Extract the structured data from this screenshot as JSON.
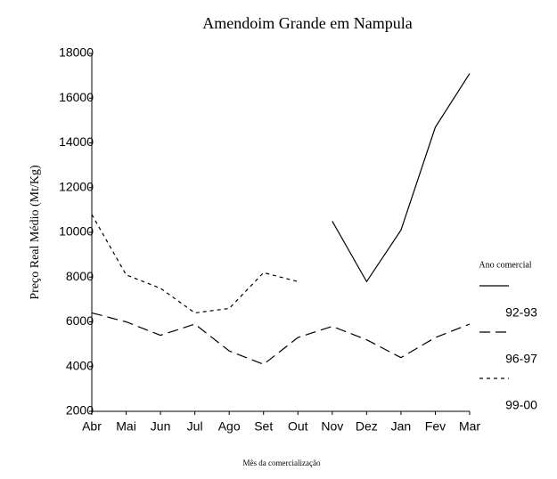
{
  "chart_data": {
    "type": "line",
    "title": "Amendoim Grande em Nampula",
    "x_label": "Mês da comercialização",
    "y_label": "Preço Real Médio (Mt/Kg)",
    "legend_title": "Ano comercial",
    "legend": "right",
    "categories": [
      "Abr",
      "Mai",
      "Jun",
      "Jul",
      "Ago",
      "Set",
      "Out",
      "Nov",
      "Dez",
      "Jan",
      "Fev",
      "Mar"
    ],
    "series": [
      {
        "name": "92-93",
        "color": "#000000",
        "dash": "solid",
        "values": [
          null,
          null,
          null,
          null,
          null,
          null,
          null,
          10500,
          7800,
          10100,
          14700,
          17100
        ]
      },
      {
        "name": "96-97",
        "color": "#000000",
        "dash": "long-dash",
        "values": [
          6400,
          6000,
          5400,
          5900,
          4700,
          4100,
          5300,
          5800,
          5200,
          4400,
          5300,
          5900
        ]
      },
      {
        "name": "99-00",
        "color": "#000000",
        "dash": "short-dash",
        "values": [
          10800,
          8100,
          7500,
          6400,
          6600,
          8200,
          7800,
          null,
          null,
          null,
          null,
          null
        ]
      }
    ],
    "ylim": [
      2000,
      18000
    ],
    "yticks": [
      2000,
      4000,
      6000,
      8000,
      10000,
      12000,
      14000,
      16000,
      18000
    ],
    "grid": false
  }
}
